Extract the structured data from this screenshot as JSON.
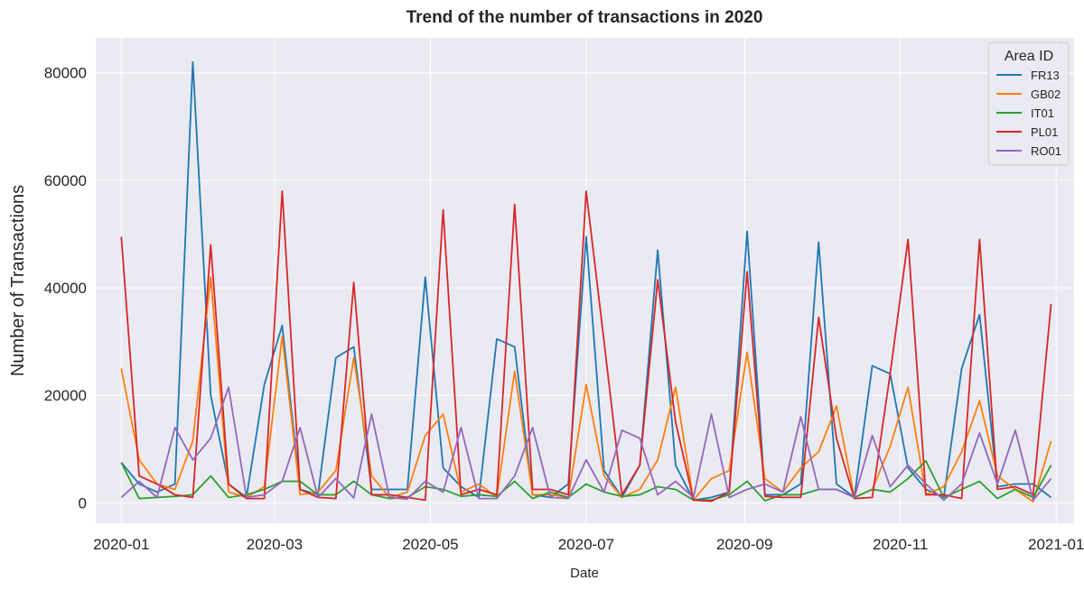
{
  "chart_data": {
    "type": "line",
    "title": "Trend of the number of transactions in 2020",
    "xlabel": "Date",
    "ylabel": "Number of Transactions",
    "xlim": [
      "2019-12-22",
      "2021-01-08"
    ],
    "ylim": [
      -3800,
      86500
    ],
    "x_ticks": [
      "2020-01",
      "2020-03",
      "2020-05",
      "2020-07",
      "2020-09",
      "2020-11",
      "2021-01"
    ],
    "x_tick_dates": [
      "2020-01-01",
      "2020-03-01",
      "2020-05-01",
      "2020-07-01",
      "2020-09-01",
      "2020-11-01",
      "2021-01-01"
    ],
    "y_ticks": [
      0,
      20000,
      40000,
      60000,
      80000
    ],
    "grid": true,
    "legend": {
      "title": "Area ID",
      "placement": "top-right"
    },
    "x": [
      "2020-01-01",
      "2020-01-08",
      "2020-01-15",
      "2020-01-22",
      "2020-01-29",
      "2020-02-05",
      "2020-02-12",
      "2020-02-19",
      "2020-02-26",
      "2020-03-04",
      "2020-03-11",
      "2020-03-18",
      "2020-03-25",
      "2020-04-01",
      "2020-04-08",
      "2020-04-15",
      "2020-04-22",
      "2020-04-29",
      "2020-05-06",
      "2020-05-13",
      "2020-05-20",
      "2020-05-27",
      "2020-06-03",
      "2020-06-10",
      "2020-06-17",
      "2020-06-24",
      "2020-07-01",
      "2020-07-08",
      "2020-07-15",
      "2020-07-22",
      "2020-07-29",
      "2020-08-05",
      "2020-08-12",
      "2020-08-19",
      "2020-08-26",
      "2020-09-02",
      "2020-09-09",
      "2020-09-16",
      "2020-09-23",
      "2020-09-30",
      "2020-10-07",
      "2020-10-14",
      "2020-10-21",
      "2020-10-28",
      "2020-11-04",
      "2020-11-11",
      "2020-11-18",
      "2020-11-25",
      "2020-12-02",
      "2020-12-09",
      "2020-12-16",
      "2020-12-23",
      "2020-12-30"
    ],
    "series": [
      {
        "name": "FR13",
        "color": "#1f77b4",
        "values": [
          7500,
          3500,
          2000,
          3500,
          82000,
          20000,
          3500,
          1000,
          22000,
          33000,
          2500,
          1500,
          27000,
          29000,
          2500,
          2500,
          2500,
          42000,
          6500,
          3000,
          1000,
          30500,
          29000,
          1500,
          1000,
          3500,
          49500,
          6000,
          1000,
          7000,
          47000,
          7000,
          500,
          1000,
          2000,
          50500,
          1500,
          1500,
          3500,
          48500,
          3500,
          1000,
          25500,
          24000,
          6500,
          2500,
          1000,
          25000,
          35000,
          3000,
          3500,
          3500,
          1000
        ]
      },
      {
        "name": "GB02",
        "color": "#ff7f0e",
        "values": [
          25000,
          8000,
          3500,
          2500,
          11500,
          42000,
          2000,
          1000,
          3000,
          31000,
          1500,
          2000,
          6000,
          27000,
          5000,
          1000,
          2000,
          12500,
          16500,
          2000,
          3500,
          1000,
          24500,
          1500,
          1500,
          1000,
          22000,
          5000,
          1000,
          2500,
          8000,
          21500,
          500,
          4500,
          6000,
          28000,
          4500,
          2000,
          6500,
          9500,
          18000,
          1000,
          2500,
          10500,
          21500,
          1500,
          3000,
          9500,
          19000,
          5000,
          2500,
          200,
          11500
        ]
      },
      {
        "name": "IT01",
        "color": "#2ca02c",
        "values": [
          7500,
          800,
          1000,
          1200,
          1500,
          5000,
          1000,
          1500,
          2500,
          4000,
          4000,
          1500,
          1500,
          4000,
          1500,
          800,
          1000,
          3000,
          2500,
          1200,
          1500,
          1200,
          4000,
          800,
          2000,
          1000,
          3500,
          2000,
          1200,
          1500,
          3000,
          2500,
          500,
          500,
          1500,
          4000,
          400,
          1500,
          1500,
          2500,
          2500,
          1000,
          2500,
          2000,
          4500,
          7800,
          1000,
          2500,
          4000,
          800,
          2500,
          1000,
          7000
        ]
      },
      {
        "name": "PL01",
        "color": "#d62728",
        "values": [
          49500,
          5000,
          3500,
          1500,
          1000,
          48000,
          3500,
          800,
          800,
          58000,
          2500,
          1000,
          800,
          41000,
          1500,
          1500,
          1000,
          500,
          54500,
          1500,
          2500,
          1500,
          55500,
          2500,
          2500,
          1500,
          58000,
          30000,
          1500,
          7000,
          41500,
          15000,
          500,
          300,
          2000,
          43000,
          1200,
          1000,
          1000,
          34500,
          12000,
          800,
          1000,
          24000,
          49000,
          1500,
          1500,
          800,
          49000,
          2500,
          3000,
          1500,
          37000
        ]
      },
      {
        "name": "RO01",
        "color": "#9467bd",
        "values": [
          1000,
          4000,
          1000,
          14000,
          8000,
          12000,
          21500,
          1000,
          1500,
          4000,
          14000,
          1000,
          4500,
          900,
          16500,
          1000,
          700,
          4000,
          2000,
          14000,
          800,
          800,
          5000,
          14000,
          1000,
          800,
          8000,
          2000,
          13500,
          12000,
          1500,
          4000,
          1000,
          16500,
          1000,
          2500,
          3500,
          2000,
          16000,
          2500,
          2500,
          1000,
          12500,
          3000,
          7000,
          3500,
          500,
          3500,
          13000,
          3500,
          13500,
          500,
          4500
        ]
      }
    ]
  }
}
